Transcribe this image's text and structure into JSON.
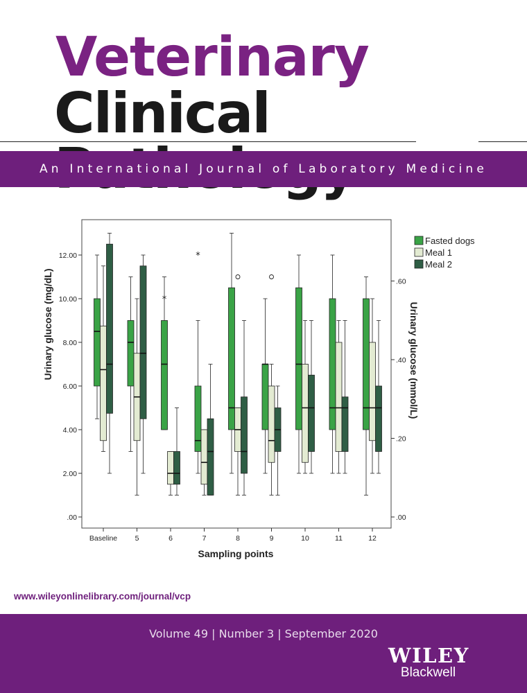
{
  "journal": {
    "title_line1": "Veterinary",
    "title_line2": "Clinical Pathology",
    "subtitle": "An International Journal of Laboratory Medicine"
  },
  "url": "www.wileyonlinelibrary.com/journal/vcp",
  "issue": "Volume 49 | Number 3 | September 2020",
  "publisher": {
    "top": "WILEY",
    "bottom": "Blackwell"
  },
  "colors": {
    "brand_purple": "#6e1f7c",
    "title_purple": "#7a2282"
  },
  "chart_data": {
    "type": "boxplot",
    "xlabel": "Sampling points",
    "ylabel": "Urinary glucose (mg/dL)",
    "y2label": "Urinary glucose (mmol/L)",
    "ylim": [
      0,
      13.6
    ],
    "yticks": [
      ".00",
      "2.00",
      "4.00",
      "6.00",
      "8.00",
      "10.00",
      "12.00"
    ],
    "y2ticks": [
      ".00",
      ".20",
      ".40",
      ".60"
    ],
    "categories": [
      "Baseline",
      "5",
      "6",
      "7",
      "8",
      "9",
      "10",
      "11",
      "12"
    ],
    "legend_position": "top-right",
    "series": [
      {
        "name": "Fasted dogs",
        "color": "#3aa346",
        "boxes": [
          {
            "min": 4.5,
            "q1": 6,
            "median": 8.5,
            "q3": 10,
            "max": 12
          },
          {
            "min": 3,
            "q1": 6,
            "median": 8,
            "q3": 9,
            "max": 11
          },
          {
            "min": 4,
            "q1": 4,
            "median": 7,
            "q3": 9,
            "max": 11,
            "extremes": [
              10
            ]
          },
          {
            "min": 2,
            "q1": 3,
            "median": 3.5,
            "q3": 6,
            "max": 9,
            "extremes": [
              12
            ]
          },
          {
            "min": 2,
            "q1": 4,
            "median": 5,
            "q3": 10.5,
            "max": 13
          },
          {
            "min": 2,
            "q1": 4,
            "median": 7,
            "q3": 7,
            "max": 10
          },
          {
            "min": 2,
            "q1": 4,
            "median": 7,
            "q3": 10.5,
            "max": 12
          },
          {
            "min": 2,
            "q1": 4,
            "median": 5,
            "q3": 10,
            "max": 12
          },
          {
            "min": 1,
            "q1": 4,
            "median": 5,
            "q3": 10,
            "max": 11
          }
        ]
      },
      {
        "name": "Meal 1",
        "color": "#e3ebd2",
        "boxes": [
          {
            "min": 3,
            "q1": 3.5,
            "median": 6.75,
            "q3": 8.75,
            "max": 11.5
          },
          {
            "min": 1,
            "q1": 3.5,
            "median": 5.5,
            "q3": 7.5,
            "max": 10
          },
          {
            "min": 1,
            "q1": 1.5,
            "median": 2,
            "q3": 3,
            "max": 3
          },
          {
            "min": 1,
            "q1": 1.5,
            "median": 2.5,
            "q3": 4,
            "max": 4
          },
          {
            "min": 1,
            "q1": 3,
            "median": 4,
            "q3": 5,
            "max": 5,
            "outliers": [
              11
            ]
          },
          {
            "min": 1,
            "q1": 2.5,
            "median": 3.5,
            "q3": 6,
            "max": 7,
            "outliers": [
              11
            ]
          },
          {
            "min": 2,
            "q1": 2.5,
            "median": 5,
            "q3": 7,
            "max": 9
          },
          {
            "min": 2,
            "q1": 3,
            "median": 5,
            "q3": 8,
            "max": 9
          },
          {
            "min": 2,
            "q1": 3.5,
            "median": 5,
            "q3": 8,
            "max": 10
          }
        ]
      },
      {
        "name": "Meal 2",
        "color": "#2f5e45",
        "boxes": [
          {
            "min": 2,
            "q1": 4.75,
            "median": 7,
            "q3": 12.5,
            "max": 13
          },
          {
            "min": 2,
            "q1": 4.5,
            "median": 7.5,
            "q3": 11.5,
            "max": 12
          },
          {
            "min": 1,
            "q1": 1.5,
            "median": 2,
            "q3": 3,
            "max": 5
          },
          {
            "min": 1,
            "q1": 1,
            "median": 3,
            "q3": 4.5,
            "max": 7
          },
          {
            "min": 1,
            "q1": 2,
            "median": 3,
            "q3": 5.5,
            "max": 9
          },
          {
            "min": 1,
            "q1": 3,
            "median": 4,
            "q3": 5,
            "max": 6
          },
          {
            "min": 2,
            "q1": 3,
            "median": 5,
            "q3": 6.5,
            "max": 9
          },
          {
            "min": 2,
            "q1": 3,
            "median": 5,
            "q3": 5.5,
            "max": 9
          },
          {
            "min": 2,
            "q1": 3,
            "median": 5,
            "q3": 6,
            "max": 9
          }
        ]
      }
    ]
  }
}
